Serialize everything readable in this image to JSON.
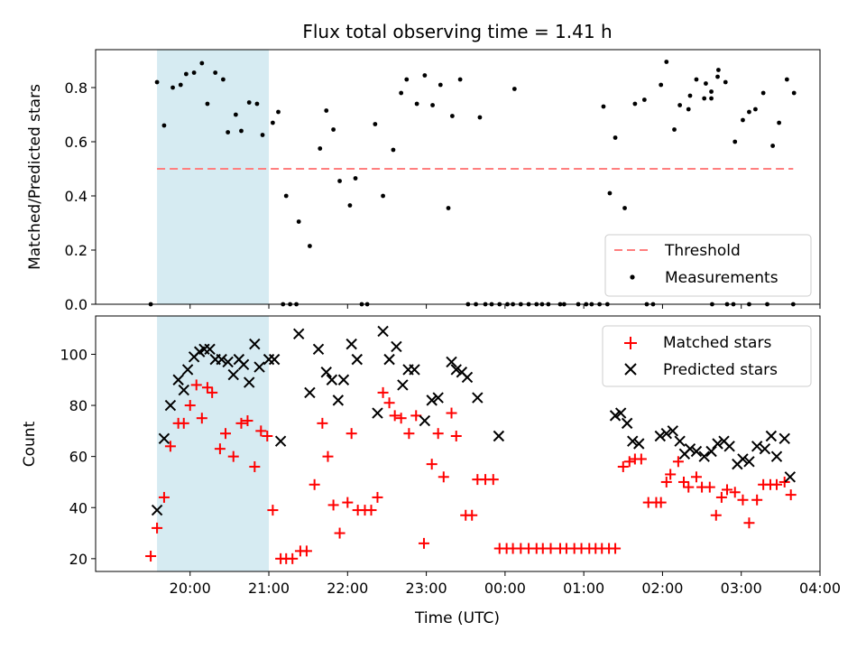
{
  "chart_data": {
    "title": "Flux total observing time = 1.41 h",
    "xlabel": "Time (UTC)",
    "xticks": [
      "20:00",
      "21:00",
      "22:00",
      "23:00",
      "00:00",
      "01:00",
      "02:00",
      "03:00",
      "04:00"
    ],
    "x_range_hours": [
      18.8,
      28.0
    ],
    "highlight_span_hours": [
      19.58,
      21.0
    ],
    "highlight_color": "#add8e6",
    "panels": [
      {
        "type": "scatter",
        "ylabel": "Matched/Predicted stars",
        "ylim": [
          0,
          0.94
        ],
        "yticks": [
          "0.0",
          "0.2",
          "0.4",
          "0.6",
          "0.8"
        ],
        "threshold": {
          "label": "Threshold",
          "value": 0.5,
          "x_range": [
            19.58,
            27.66
          ],
          "color": "#ff7f7f"
        },
        "legend": {
          "position": "lower-right",
          "entries": [
            "Threshold",
            "Measurements"
          ]
        },
        "series": [
          {
            "name": "Measurements",
            "color": "#000000",
            "marker": "dot",
            "x": [
              19.58,
              19.67,
              19.78,
              19.88,
              19.95,
              20.05,
              20.15,
              20.22,
              20.32,
              20.42,
              20.48,
              20.58,
              20.65,
              20.75,
              20.85,
              20.92,
              21.05,
              21.12,
              21.22,
              21.38,
              21.52,
              21.65,
              21.73,
              21.82,
              21.9,
              22.03,
              22.1,
              22.35,
              22.45,
              22.58,
              22.68,
              22.75,
              22.88,
              22.98,
              23.08,
              23.18,
              23.28,
              23.33,
              23.43,
              23.68,
              24.12,
              25.25,
              25.33,
              25.4,
              25.52,
              25.65,
              25.77,
              25.98,
              26.05,
              26.15,
              26.22,
              26.35,
              26.43,
              26.53,
              26.62,
              26.7,
              26.8,
              26.92,
              27.02,
              27.1,
              27.18,
              27.28,
              27.4,
              27.48,
              27.58,
              27.67,
              26.33,
              26.55,
              26.62,
              26.71,
              26.82,
              26.9,
              27.1,
              27.33,
              27.66,
              19.5,
              21.18,
              21.27,
              21.35,
              22.18,
              22.25,
              23.53,
              23.63,
              23.75,
              23.83,
              23.93,
              24.03,
              24.1,
              24.2,
              24.3,
              24.4,
              24.47,
              24.55,
              24.7,
              24.75,
              24.93,
              25.03,
              25.1,
              25.2,
              25.3,
              25.8,
              25.88,
              26.63
            ],
            "y": [
              0.82,
              0.66,
              0.8,
              0.81,
              0.85,
              0.855,
              0.89,
              0.74,
              0.855,
              0.83,
              0.635,
              0.7,
              0.64,
              0.745,
              0.74,
              0.625,
              0.67,
              0.71,
              0.4,
              0.305,
              0.215,
              0.575,
              0.715,
              0.645,
              0.455,
              0.365,
              0.465,
              0.665,
              0.4,
              0.57,
              0.78,
              0.83,
              0.74,
              0.845,
              0.735,
              0.81,
              0.355,
              0.695,
              0.83,
              0.69,
              0.795,
              0.73,
              0.41,
              0.615,
              0.355,
              0.74,
              0.755,
              0.81,
              0.895,
              0.645,
              0.735,
              0.77,
              0.83,
              0.76,
              0.785,
              0.84,
              0.82,
              0.6,
              0.68,
              0.71,
              0.72,
              0.78,
              0.585,
              0.67,
              0.83,
              0.78,
              0.72,
              0.815,
              0.76,
              0.865,
              0.0,
              0.0,
              0.0,
              0.0,
              0.0,
              0.0,
              0.0,
              0.0,
              0.0,
              0.0,
              0.0,
              0.0,
              0.0,
              0.0,
              0.0,
              0.0,
              0.0,
              0.0,
              0.0,
              0.0,
              0.0,
              0.0,
              0.0,
              0.0,
              0.0,
              0.0,
              0.0,
              0.0,
              0.0,
              0.0,
              0.0,
              0.0,
              0.0
            ]
          }
        ]
      },
      {
        "type": "scatter",
        "ylabel": "Count",
        "ylim": [
          15,
          115
        ],
        "yticks": [
          "20",
          "40",
          "60",
          "80",
          "100"
        ],
        "legend": {
          "position": "upper-right",
          "entries": [
            "Matched stars",
            "Predicted stars"
          ]
        },
        "series": [
          {
            "name": "Matched stars",
            "color": "#ff0000",
            "marker": "plus",
            "x": [
              19.5,
              19.58,
              19.67,
              19.75,
              19.85,
              19.92,
              20.0,
              20.08,
              20.15,
              20.22,
              20.28,
              20.38,
              20.45,
              20.55,
              20.65,
              20.73,
              20.82,
              20.9,
              20.98,
              21.05,
              21.15,
              21.22,
              21.3,
              21.4,
              21.48,
              21.58,
              21.68,
              21.75,
              21.82,
              21.9,
              22.0,
              22.05,
              22.13,
              22.22,
              22.3,
              22.38,
              22.45,
              22.53,
              22.6,
              22.68,
              22.78,
              22.87,
              22.97,
              23.07,
              23.15,
              23.22,
              23.32,
              23.38,
              23.5,
              23.58,
              23.65,
              23.75,
              23.85,
              23.93,
              24.02,
              24.1,
              24.2,
              24.3,
              24.4,
              24.48,
              24.58,
              24.7,
              24.78,
              24.88,
              24.97,
              25.07,
              25.15,
              25.23,
              25.32,
              25.4,
              25.5,
              25.58,
              25.65,
              25.73,
              25.82,
              25.92,
              25.98,
              26.05,
              26.1,
              26.2,
              26.27,
              26.33,
              26.43,
              26.5,
              26.6,
              26.68,
              26.75,
              26.82,
              26.92,
              27.02,
              27.1,
              27.2,
              27.28,
              27.37,
              27.45,
              27.55,
              27.63
            ],
            "y": [
              21,
              32,
              44,
              64,
              73,
              73,
              80,
              88,
              75,
              87,
              85,
              63,
              69,
              60,
              73,
              74,
              56,
              70,
              68,
              39,
              20,
              20,
              20,
              23,
              23,
              49,
              73,
              60,
              41,
              30,
              42,
              69,
              39,
              39,
              39,
              44,
              85,
              81,
              76,
              75,
              69,
              76,
              26,
              57,
              69,
              52,
              77,
              68,
              37,
              37,
              51,
              51,
              51,
              24,
              24,
              24,
              24,
              24,
              24,
              24,
              24,
              24,
              24,
              24,
              24,
              24,
              24,
              24,
              24,
              24,
              56,
              58,
              59,
              59,
              42,
              42,
              42,
              50,
              53,
              58,
              50,
              48,
              52,
              48,
              48,
              37,
              44,
              47,
              46,
              43,
              34,
              43,
              49,
              49,
              49,
              50,
              45
            ]
          },
          {
            "name": "Predicted stars",
            "color": "#000000",
            "marker": "x",
            "x": [
              19.58,
              19.67,
              19.75,
              19.85,
              19.92,
              19.97,
              20.05,
              20.12,
              20.18,
              20.25,
              20.32,
              20.4,
              20.48,
              20.55,
              20.62,
              20.68,
              20.75,
              20.82,
              20.88,
              21.0,
              21.07,
              21.15,
              21.38,
              21.52,
              21.63,
              21.73,
              21.8,
              21.88,
              21.95,
              22.05,
              22.12,
              22.38,
              22.45,
              22.53,
              22.62,
              22.7,
              22.77,
              22.85,
              22.98,
              23.07,
              23.15,
              23.32,
              23.38,
              23.45,
              23.52,
              23.65,
              23.92,
              25.4,
              25.47,
              25.55,
              25.62,
              25.7,
              25.97,
              26.05,
              26.13,
              26.22,
              26.28,
              26.35,
              26.43,
              26.53,
              26.62,
              26.7,
              26.78,
              26.85,
              26.95,
              27.02,
              27.1,
              27.2,
              27.3,
              27.38,
              27.45,
              27.55,
              27.62
            ],
            "y": [
              39,
              67,
              80,
              90,
              86,
              94,
              99,
              101,
              102,
              102,
              98,
              98,
              97,
              92,
              98,
              96,
              89,
              104,
              95,
              98,
              98,
              66,
              108,
              85,
              102,
              93,
              90,
              82,
              90,
              104,
              98,
              77,
              109,
              98,
              103,
              88,
              94,
              94,
              74,
              82,
              83,
              97,
              94,
              93,
              91,
              83,
              68,
              76,
              77,
              73,
              66,
              65,
              68,
              69,
              70,
              66,
              61,
              63,
              62,
              60,
              62,
              65,
              66,
              64,
              57,
              59,
              58,
              64,
              63,
              68,
              60,
              67,
              52
            ]
          }
        ]
      }
    ]
  }
}
